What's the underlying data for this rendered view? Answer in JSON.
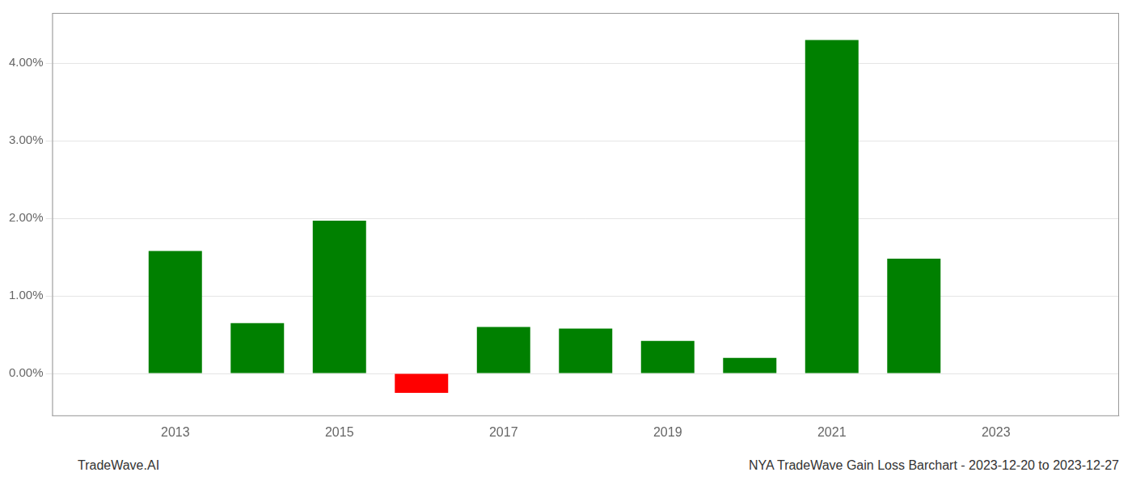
{
  "chart_data": {
    "type": "bar",
    "x": [
      2013,
      2014,
      2015,
      2016,
      2017,
      2018,
      2019,
      2020,
      2021,
      2022
    ],
    "values": [
      1.58,
      0.65,
      1.97,
      -0.25,
      0.6,
      0.58,
      0.42,
      0.2,
      4.3,
      1.48
    ],
    "colors": [
      "#008000",
      "#008000",
      "#008000",
      "#ff0000",
      "#008000",
      "#008000",
      "#008000",
      "#008000",
      "#008000",
      "#008000"
    ],
    "xlim": [
      2011.5,
      2024.5
    ],
    "xticks": [
      2013,
      2015,
      2017,
      2019,
      2021,
      2023
    ],
    "ylim": [
      -0.55,
      4.65
    ],
    "yticks": [
      {
        "value": 0.0,
        "label": "0.00%"
      },
      {
        "value": 1.0,
        "label": "1.00%"
      },
      {
        "value": 2.0,
        "label": "2.00%"
      },
      {
        "value": 3.0,
        "label": "3.00%"
      },
      {
        "value": 4.0,
        "label": "4.00%"
      }
    ],
    "grid": true,
    "annotations": [
      "TradeWave.AI",
      "NYA TradeWave Gain Loss Barchart - 2023-12-20 to 2023-12-27"
    ]
  }
}
